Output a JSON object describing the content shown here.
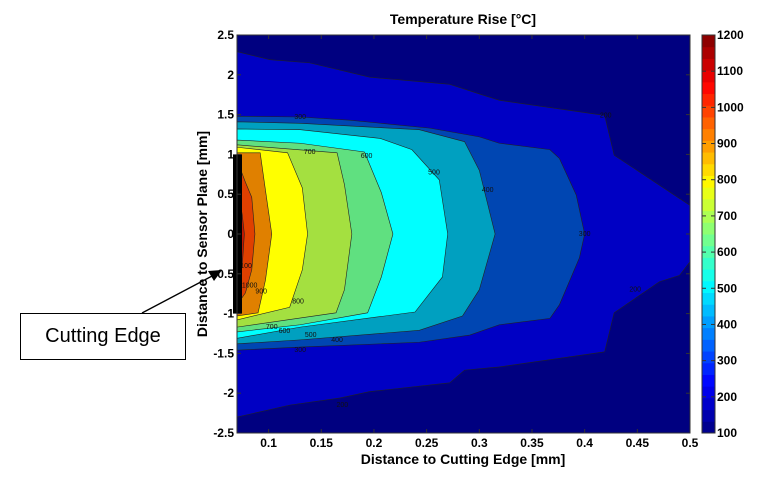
{
  "chart_data": {
    "type": "contourf",
    "title": "Temperature Rise [°C]",
    "xlabel": "Distance to Cutting Edge [mm]",
    "ylabel": "Distance to Sensor Plane [mm]",
    "xlim": [
      0.07,
      0.5
    ],
    "ylim": [
      -2.5,
      2.5
    ],
    "xticks": [
      "0.1",
      "0.15",
      "0.2",
      "0.25",
      "0.3",
      "0.35",
      "0.4",
      "0.45",
      "0.5"
    ],
    "yticks": [
      "-2.5",
      "-2",
      "-1.5",
      "-1",
      "-0.5",
      "0",
      "0.5",
      "1",
      "1.5",
      "2",
      "2.5"
    ],
    "grid": false,
    "colorbar": {
      "colormap": "jet",
      "range": [
        100,
        1200
      ],
      "ticks": [
        "100",
        "200",
        "300",
        "400",
        "500",
        "600",
        "700",
        "800",
        "900",
        "1000",
        "1100",
        "1200"
      ]
    },
    "background_color": "#000080",
    "levels": [
      {
        "level": 200,
        "color": "#0000c4",
        "boundary": [
          [
            0.07,
            2.29
          ],
          [
            0.101,
            2.19
          ],
          [
            0.139,
            2.15
          ],
          [
            0.196,
            1.97
          ],
          [
            0.272,
            1.88
          ],
          [
            0.3,
            1.76
          ],
          [
            0.319,
            1.68
          ],
          [
            0.419,
            1.49
          ],
          [
            0.428,
            0.99
          ],
          [
            0.485,
            0.49
          ],
          [
            0.5,
            0.36
          ],
          [
            0.5,
            -0.35
          ],
          [
            0.49,
            -0.52
          ],
          [
            0.471,
            -0.6
          ],
          [
            0.428,
            -0.99
          ],
          [
            0.419,
            -1.48
          ],
          [
            0.319,
            -1.67
          ],
          [
            0.286,
            -1.71
          ],
          [
            0.272,
            -1.87
          ],
          [
            0.196,
            -1.98
          ],
          [
            0.168,
            -2.06
          ],
          [
            0.12,
            -2.15
          ],
          [
            0.07,
            -2.3
          ]
        ]
      },
      {
        "level": 300,
        "color": "#0046b2",
        "boundary": [
          [
            0.07,
            1.48
          ],
          [
            0.13,
            1.47
          ],
          [
            0.177,
            1.43
          ],
          [
            0.253,
            1.33
          ],
          [
            0.3,
            1.22
          ],
          [
            0.319,
            1.14
          ],
          [
            0.367,
            1.06
          ],
          [
            0.376,
            0.95
          ],
          [
            0.392,
            0.49
          ],
          [
            0.4,
            0
          ],
          [
            0.395,
            -0.3
          ],
          [
            0.376,
            -0.89
          ],
          [
            0.367,
            -1.06
          ],
          [
            0.319,
            -1.14
          ],
          [
            0.291,
            -1.27
          ],
          [
            0.243,
            -1.36
          ],
          [
            0.13,
            -1.42
          ],
          [
            0.07,
            -1.46
          ]
        ]
      },
      {
        "level": 400,
        "color": "#00a0c0",
        "boundary": [
          [
            0.07,
            1.41
          ],
          [
            0.13,
            1.39
          ],
          [
            0.243,
            1.31
          ],
          [
            0.286,
            1.16
          ],
          [
            0.3,
            0.8
          ],
          [
            0.315,
            0
          ],
          [
            0.3,
            -0.7
          ],
          [
            0.284,
            -1.03
          ],
          [
            0.243,
            -1.21
          ],
          [
            0.13,
            -1.33
          ],
          [
            0.07,
            -1.38
          ]
        ]
      },
      {
        "level": 500,
        "color": "#00ffff",
        "boundary": [
          [
            0.07,
            1.32
          ],
          [
            0.13,
            1.31
          ],
          [
            0.206,
            1.2
          ],
          [
            0.236,
            1.06
          ],
          [
            0.262,
            0.68
          ],
          [
            0.27,
            0
          ],
          [
            0.265,
            -0.54
          ],
          [
            0.239,
            -0.98
          ],
          [
            0.13,
            -1.17
          ],
          [
            0.07,
            -1.31
          ]
        ]
      },
      {
        "level": 600,
        "color": "#60e080",
        "boundary": [
          [
            0.07,
            1.18
          ],
          [
            0.13,
            1.14
          ],
          [
            0.191,
            1.03
          ],
          [
            0.207,
            0.52
          ],
          [
            0.218,
            0
          ],
          [
            0.207,
            -0.54
          ],
          [
            0.194,
            -0.99
          ],
          [
            0.13,
            -1.14
          ],
          [
            0.07,
            -1.23
          ]
        ]
      },
      {
        "level": 700,
        "color": "#a4e040",
        "boundary": [
          [
            0.07,
            1.12
          ],
          [
            0.165,
            1.02
          ],
          [
            0.172,
            0.62
          ],
          [
            0.179,
            0
          ],
          [
            0.172,
            -0.7
          ],
          [
            0.164,
            -0.99
          ],
          [
            0.07,
            -1.17
          ]
        ]
      },
      {
        "level": 800,
        "color": "#ffff00",
        "boundary": [
          [
            0.07,
            1.09
          ],
          [
            0.118,
            1.02
          ],
          [
            0.132,
            0.58
          ],
          [
            0.137,
            0
          ],
          [
            0.132,
            -0.45
          ],
          [
            0.12,
            -0.92
          ],
          [
            0.07,
            -1.08
          ]
        ]
      },
      {
        "level": 900,
        "color": "#e08000",
        "boundary": [
          [
            0.07,
            1.02
          ],
          [
            0.092,
            1.02
          ],
          [
            0.097,
            0.55
          ],
          [
            0.103,
            0
          ],
          [
            0.097,
            -0.58
          ],
          [
            0.09,
            -0.99
          ],
          [
            0.07,
            -1.03
          ]
        ]
      },
      {
        "level": 1000,
        "color": "#e04000",
        "boundary": [
          [
            0.07,
            0.93
          ],
          [
            0.078,
            0.65
          ],
          [
            0.084,
            0.46
          ],
          [
            0.087,
            0
          ],
          [
            0.084,
            -0.45
          ],
          [
            0.078,
            -0.74
          ],
          [
            0.07,
            -0.89
          ]
        ]
      },
      {
        "level": 1100,
        "color": "#c01800",
        "boundary": [
          [
            0.07,
            0.62
          ],
          [
            0.075,
            0.24
          ],
          [
            0.077,
            0
          ],
          [
            0.075,
            -0.39
          ],
          [
            0.07,
            -0.7
          ]
        ]
      }
    ],
    "contour_labels": [
      {
        "text": "300",
        "x": 0.13,
        "y": 1.47
      },
      {
        "text": "700",
        "x": 0.139,
        "y": 1.03
      },
      {
        "text": "600",
        "x": 0.193,
        "y": 0.98
      },
      {
        "text": "500",
        "x": 0.257,
        "y": 0.77
      },
      {
        "text": "400",
        "x": 0.308,
        "y": 0.55
      },
      {
        "text": "300",
        "x": 0.4,
        "y": 0
      },
      {
        "text": "200",
        "x": 0.42,
        "y": 1.49
      },
      {
        "text": "200",
        "x": 0.448,
        "y": -0.7
      },
      {
        "text": "1100",
        "x": 0.077,
        "y": -0.4
      },
      {
        "text": "1000",
        "x": 0.082,
        "y": -0.65
      },
      {
        "text": "900",
        "x": 0.093,
        "y": -0.72
      },
      {
        "text": "800",
        "x": 0.128,
        "y": -0.85
      },
      {
        "text": "700",
        "x": 0.103,
        "y": -1.17
      },
      {
        "text": "600",
        "x": 0.115,
        "y": -1.22
      },
      {
        "text": "500",
        "x": 0.14,
        "y": -1.27
      },
      {
        "text": "400",
        "x": 0.165,
        "y": -1.33
      },
      {
        "text": "300",
        "x": 0.13,
        "y": -1.46
      },
      {
        "text": "200",
        "x": 0.17,
        "y": -2.15
      }
    ],
    "cutting_edge": {
      "x": 0.07,
      "y_range": [
        -1.0,
        1.0
      ],
      "color": "#000000"
    }
  },
  "annotation": {
    "label": "Cutting Edge"
  }
}
